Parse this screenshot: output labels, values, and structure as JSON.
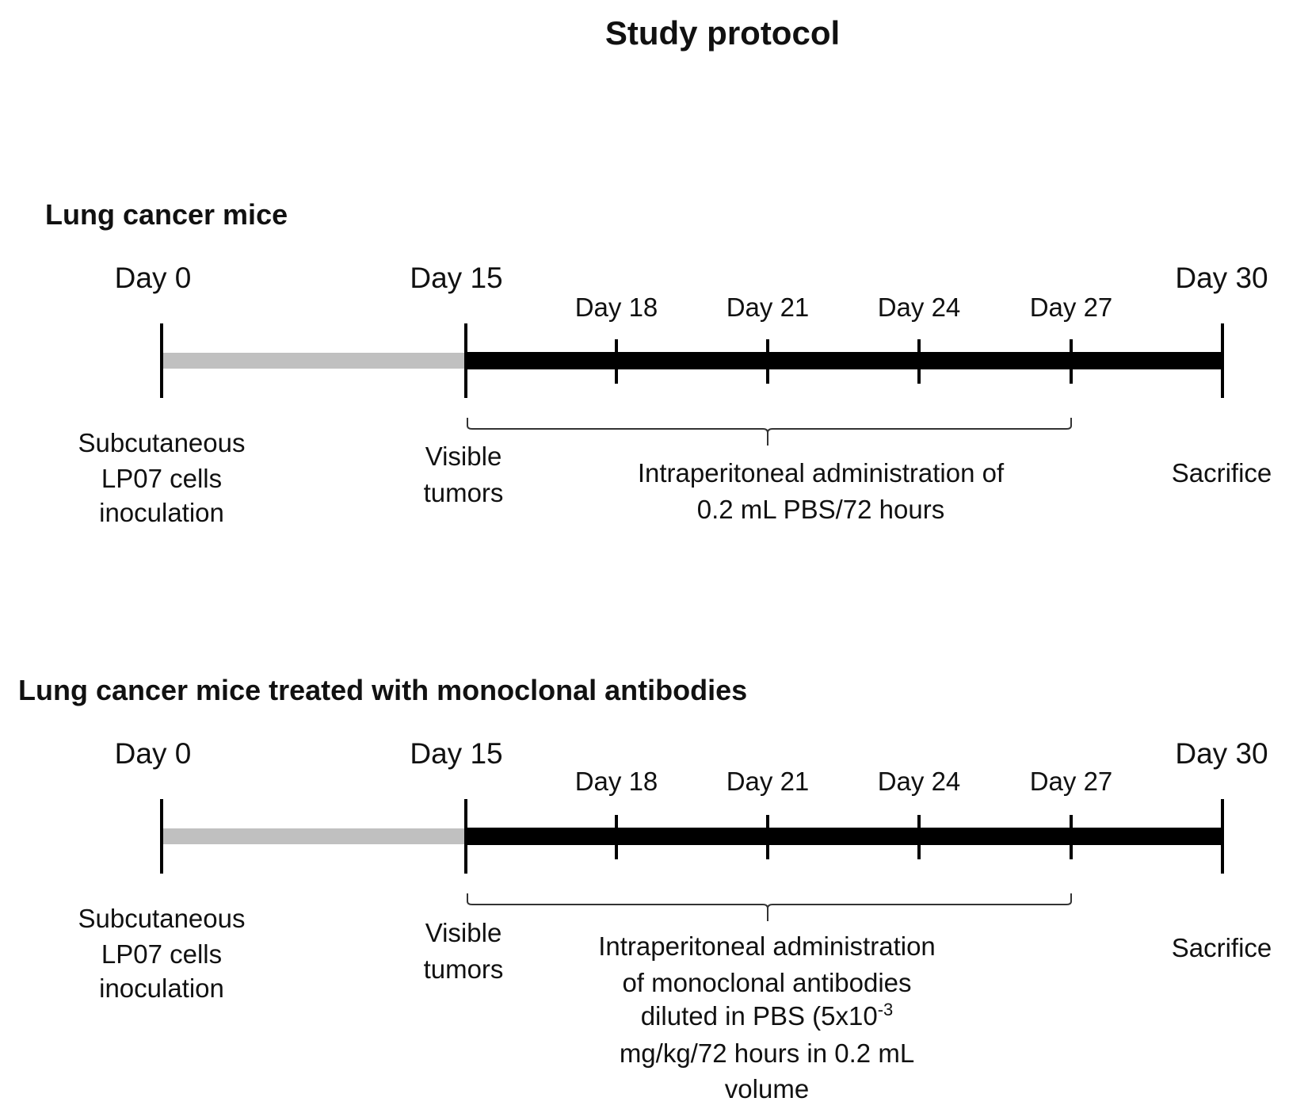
{
  "title": "Study protocol",
  "panels": [
    {
      "heading": "Lung cancer mice",
      "major_days": [
        "Day 0",
        "Day 15",
        "Day 30"
      ],
      "minor_days": [
        "Day 18",
        "Day 21",
        "Day 24",
        "Day 27"
      ],
      "inoculation": [
        "Subcutaneous",
        "LP07 cells",
        "inoculation"
      ],
      "visible": [
        "Visible",
        "tumors"
      ],
      "treatment": [
        "Intraperitoneal  administration of",
        "0.2 mL PBS/72 hours"
      ],
      "sacrifice": "Sacrifice"
    },
    {
      "heading": "Lung cancer mice treated with monoclonal antibodies",
      "major_days": [
        "Day 0",
        "Day 15",
        "Day 30"
      ],
      "minor_days": [
        "Day 18",
        "Day 21",
        "Day 24",
        "Day 27"
      ],
      "inoculation": [
        "Subcutaneous",
        "LP07 cells",
        "inoculation"
      ],
      "visible": [
        "Visible",
        "tumors"
      ],
      "treatment": [
        "Intraperitoneal  administration",
        "of monoclonal antibodies",
        "diluted in PBS (5x10",
        "mg/kg/72 hours in 0.2 mL",
        "volume"
      ],
      "treatment_superscript": "-3",
      "sacrifice": "Sacrifice"
    }
  ],
  "colors": {
    "pre_tumor_bar": "#c0c0c0",
    "treatment_bar": "#000000"
  }
}
